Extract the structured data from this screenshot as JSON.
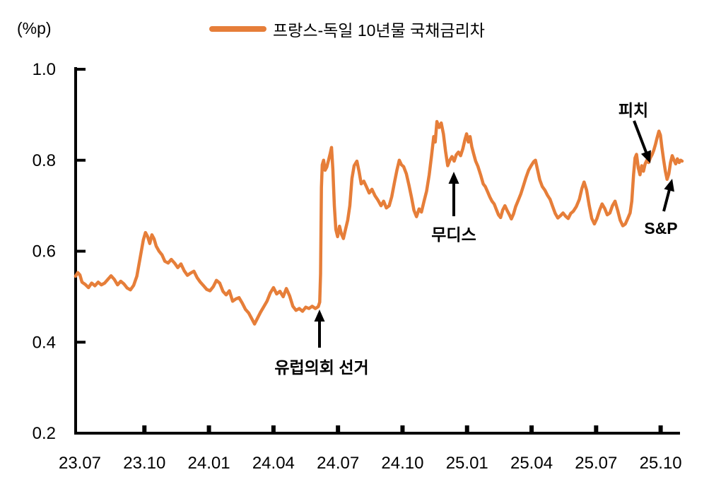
{
  "unit_label": "(%p)",
  "legend": {
    "label": "프랑스-독일 10년물 국채금리차",
    "color": "#E67E39"
  },
  "annotations": {
    "election": {
      "label": "유럽의회 선거"
    },
    "moodys": {
      "label": "무디스"
    },
    "fitch": {
      "label": "피치"
    },
    "sp": {
      "label": "S&P"
    }
  },
  "chart_data": {
    "type": "line",
    "title": "",
    "series_name": "프랑스-독일 10년물 국채금리차",
    "unit": "%p",
    "line_color": "#E67E39",
    "axis_color": "#000000",
    "grid": false,
    "legend_position": "top-center",
    "x_ticks": [
      "23.07",
      "23.10",
      "24.01",
      "24.04",
      "24.07",
      "24.10",
      "25.01",
      "25.04",
      "25.07",
      "25.10"
    ],
    "x_tick_months": [
      0,
      3,
      6,
      9,
      12,
      15,
      18,
      21,
      24,
      27
    ],
    "y_ticks": [
      "1.0",
      "0.8",
      "0.6",
      "0.4",
      "0.2"
    ],
    "y_tick_values": [
      1.0,
      0.8,
      0.6,
      0.4,
      0.2
    ],
    "ylim": [
      0.2,
      1.0
    ],
    "x_unit": "months since 2023-07",
    "points": [
      [
        -0.2,
        0.545
      ],
      [
        -0.1,
        0.553
      ],
      [
        0.0,
        0.548
      ],
      [
        0.1,
        0.532
      ],
      [
        0.25,
        0.527
      ],
      [
        0.4,
        0.52
      ],
      [
        0.55,
        0.53
      ],
      [
        0.7,
        0.524
      ],
      [
        0.85,
        0.532
      ],
      [
        1.0,
        0.526
      ],
      [
        1.15,
        0.53
      ],
      [
        1.3,
        0.538
      ],
      [
        1.45,
        0.546
      ],
      [
        1.6,
        0.538
      ],
      [
        1.75,
        0.526
      ],
      [
        1.9,
        0.534
      ],
      [
        2.05,
        0.528
      ],
      [
        2.2,
        0.519
      ],
      [
        2.35,
        0.515
      ],
      [
        2.5,
        0.525
      ],
      [
        2.65,
        0.545
      ],
      [
        2.8,
        0.585
      ],
      [
        2.95,
        0.625
      ],
      [
        3.05,
        0.641
      ],
      [
        3.15,
        0.632
      ],
      [
        3.25,
        0.617
      ],
      [
        3.35,
        0.636
      ],
      [
        3.45,
        0.627
      ],
      [
        3.55,
        0.611
      ],
      [
        3.68,
        0.6
      ],
      [
        3.82,
        0.592
      ],
      [
        3.95,
        0.578
      ],
      [
        4.1,
        0.574
      ],
      [
        4.25,
        0.582
      ],
      [
        4.4,
        0.574
      ],
      [
        4.55,
        0.564
      ],
      [
        4.7,
        0.572
      ],
      [
        4.85,
        0.557
      ],
      [
        5.0,
        0.547
      ],
      [
        5.15,
        0.552
      ],
      [
        5.3,
        0.556
      ],
      [
        5.45,
        0.542
      ],
      [
        5.6,
        0.532
      ],
      [
        5.75,
        0.524
      ],
      [
        5.9,
        0.516
      ],
      [
        6.05,
        0.513
      ],
      [
        6.2,
        0.522
      ],
      [
        6.35,
        0.536
      ],
      [
        6.5,
        0.53
      ],
      [
        6.65,
        0.512
      ],
      [
        6.8,
        0.504
      ],
      [
        6.95,
        0.513
      ],
      [
        7.1,
        0.49
      ],
      [
        7.25,
        0.495
      ],
      [
        7.4,
        0.498
      ],
      [
        7.55,
        0.486
      ],
      [
        7.7,
        0.472
      ],
      [
        7.85,
        0.464
      ],
      [
        8.0,
        0.451
      ],
      [
        8.12,
        0.44
      ],
      [
        8.25,
        0.452
      ],
      [
        8.4,
        0.466
      ],
      [
        8.55,
        0.478
      ],
      [
        8.7,
        0.49
      ],
      [
        8.85,
        0.508
      ],
      [
        9.0,
        0.52
      ],
      [
        9.15,
        0.506
      ],
      [
        9.3,
        0.512
      ],
      [
        9.45,
        0.5
      ],
      [
        9.6,
        0.518
      ],
      [
        9.75,
        0.502
      ],
      [
        9.9,
        0.479
      ],
      [
        10.05,
        0.47
      ],
      [
        10.2,
        0.474
      ],
      [
        10.35,
        0.468
      ],
      [
        10.5,
        0.477
      ],
      [
        10.65,
        0.474
      ],
      [
        10.8,
        0.479
      ],
      [
        10.95,
        0.474
      ],
      [
        11.08,
        0.478
      ],
      [
        11.15,
        0.488
      ],
      [
        11.19,
        0.55
      ],
      [
        11.23,
        0.74
      ],
      [
        11.27,
        0.79
      ],
      [
        11.33,
        0.8
      ],
      [
        11.4,
        0.778
      ],
      [
        11.48,
        0.785
      ],
      [
        11.56,
        0.8
      ],
      [
        11.64,
        0.815
      ],
      [
        11.7,
        0.828
      ],
      [
        11.76,
        0.78
      ],
      [
        11.83,
        0.7
      ],
      [
        11.9,
        0.648
      ],
      [
        11.98,
        0.632
      ],
      [
        12.07,
        0.655
      ],
      [
        12.16,
        0.638
      ],
      [
        12.25,
        0.628
      ],
      [
        12.35,
        0.648
      ],
      [
        12.45,
        0.668
      ],
      [
        12.55,
        0.7
      ],
      [
        12.65,
        0.76
      ],
      [
        12.75,
        0.788
      ],
      [
        12.88,
        0.798
      ],
      [
        12.98,
        0.775
      ],
      [
        13.08,
        0.748
      ],
      [
        13.2,
        0.754
      ],
      [
        13.32,
        0.742
      ],
      [
        13.45,
        0.728
      ],
      [
        13.58,
        0.736
      ],
      [
        13.72,
        0.722
      ],
      [
        13.86,
        0.712
      ],
      [
        14.0,
        0.7
      ],
      [
        14.12,
        0.71
      ],
      [
        14.25,
        0.695
      ],
      [
        14.38,
        0.7
      ],
      [
        14.5,
        0.72
      ],
      [
        14.62,
        0.75
      ],
      [
        14.74,
        0.778
      ],
      [
        14.85,
        0.8
      ],
      [
        14.95,
        0.79
      ],
      [
        15.05,
        0.786
      ],
      [
        15.18,
        0.77
      ],
      [
        15.3,
        0.745
      ],
      [
        15.42,
        0.718
      ],
      [
        15.53,
        0.69
      ],
      [
        15.65,
        0.676
      ],
      [
        15.77,
        0.693
      ],
      [
        15.88,
        0.686
      ],
      [
        16.0,
        0.71
      ],
      [
        16.12,
        0.732
      ],
      [
        16.24,
        0.768
      ],
      [
        16.35,
        0.81
      ],
      [
        16.45,
        0.852
      ],
      [
        16.52,
        0.84
      ],
      [
        16.6,
        0.885
      ],
      [
        16.7,
        0.872
      ],
      [
        16.8,
        0.882
      ],
      [
        16.9,
        0.858
      ],
      [
        17.0,
        0.82
      ],
      [
        17.1,
        0.788
      ],
      [
        17.2,
        0.8
      ],
      [
        17.3,
        0.808
      ],
      [
        17.4,
        0.798
      ],
      [
        17.5,
        0.812
      ],
      [
        17.6,
        0.818
      ],
      [
        17.7,
        0.81
      ],
      [
        17.8,
        0.825
      ],
      [
        17.9,
        0.845
      ],
      [
        17.98,
        0.858
      ],
      [
        18.06,
        0.84
      ],
      [
        18.14,
        0.852
      ],
      [
        18.22,
        0.83
      ],
      [
        18.3,
        0.815
      ],
      [
        18.4,
        0.798
      ],
      [
        18.5,
        0.787
      ],
      [
        18.63,
        0.768
      ],
      [
        18.75,
        0.748
      ],
      [
        18.85,
        0.742
      ],
      [
        18.96,
        0.73
      ],
      [
        19.06,
        0.719
      ],
      [
        19.16,
        0.71
      ],
      [
        19.26,
        0.704
      ],
      [
        19.36,
        0.692
      ],
      [
        19.46,
        0.68
      ],
      [
        19.56,
        0.674
      ],
      [
        19.66,
        0.691
      ],
      [
        19.76,
        0.7
      ],
      [
        19.86,
        0.69
      ],
      [
        19.96,
        0.681
      ],
      [
        20.06,
        0.671
      ],
      [
        20.16,
        0.682
      ],
      [
        20.26,
        0.698
      ],
      [
        20.38,
        0.712
      ],
      [
        20.5,
        0.726
      ],
      [
        20.62,
        0.744
      ],
      [
        20.74,
        0.762
      ],
      [
        20.86,
        0.778
      ],
      [
        20.98,
        0.788
      ],
      [
        21.1,
        0.797
      ],
      [
        21.18,
        0.8
      ],
      [
        21.28,
        0.778
      ],
      [
        21.38,
        0.757
      ],
      [
        21.5,
        0.742
      ],
      [
        21.62,
        0.734
      ],
      [
        21.74,
        0.723
      ],
      [
        21.86,
        0.714
      ],
      [
        21.98,
        0.698
      ],
      [
        22.1,
        0.683
      ],
      [
        22.22,
        0.673
      ],
      [
        22.34,
        0.678
      ],
      [
        22.46,
        0.684
      ],
      [
        22.58,
        0.677
      ],
      [
        22.7,
        0.672
      ],
      [
        22.82,
        0.683
      ],
      [
        22.94,
        0.688
      ],
      [
        23.08,
        0.698
      ],
      [
        23.22,
        0.714
      ],
      [
        23.34,
        0.738
      ],
      [
        23.44,
        0.752
      ],
      [
        23.56,
        0.734
      ],
      [
        23.68,
        0.7
      ],
      [
        23.8,
        0.672
      ],
      [
        23.92,
        0.66
      ],
      [
        24.04,
        0.672
      ],
      [
        24.16,
        0.69
      ],
      [
        24.28,
        0.704
      ],
      [
        24.4,
        0.694
      ],
      [
        24.52,
        0.68
      ],
      [
        24.64,
        0.684
      ],
      [
        24.76,
        0.7
      ],
      [
        24.88,
        0.71
      ],
      [
        25.0,
        0.69
      ],
      [
        25.12,
        0.668
      ],
      [
        25.24,
        0.656
      ],
      [
        25.36,
        0.66
      ],
      [
        25.48,
        0.673
      ],
      [
        25.58,
        0.684
      ],
      [
        25.66,
        0.71
      ],
      [
        25.74,
        0.768
      ],
      [
        25.81,
        0.805
      ],
      [
        25.88,
        0.813
      ],
      [
        25.96,
        0.783
      ],
      [
        26.04,
        0.768
      ],
      [
        26.12,
        0.788
      ],
      [
        26.2,
        0.776
      ],
      [
        26.28,
        0.792
      ],
      [
        26.36,
        0.8
      ],
      [
        26.44,
        0.795
      ],
      [
        26.52,
        0.805
      ],
      [
        26.6,
        0.812
      ],
      [
        26.68,
        0.822
      ],
      [
        26.76,
        0.835
      ],
      [
        26.84,
        0.85
      ],
      [
        26.92,
        0.864
      ],
      [
        26.99,
        0.855
      ],
      [
        27.06,
        0.828
      ],
      [
        27.14,
        0.8
      ],
      [
        27.22,
        0.776
      ],
      [
        27.3,
        0.758
      ],
      [
        27.38,
        0.77
      ],
      [
        27.46,
        0.795
      ],
      [
        27.54,
        0.81
      ],
      [
        27.62,
        0.8
      ],
      [
        27.7,
        0.792
      ],
      [
        27.78,
        0.803
      ],
      [
        27.86,
        0.795
      ],
      [
        27.93,
        0.8
      ],
      [
        28.0,
        0.798
      ]
    ],
    "events": [
      {
        "key": "election",
        "label": "유럽의회 선거",
        "x_month": 11.2,
        "note": "spread jumps from ~0.48 to ~0.80"
      },
      {
        "key": "moodys",
        "label": "무디스",
        "x_month": 17.4,
        "note": "spread ~0.80"
      },
      {
        "key": "fitch",
        "label": "피치",
        "x_month": 25.8,
        "note": "spread rises to ~0.81"
      },
      {
        "key": "sp",
        "label": "S&P",
        "x_month": 27.4,
        "note": "dip to ~0.76 then ~0.80"
      }
    ]
  }
}
